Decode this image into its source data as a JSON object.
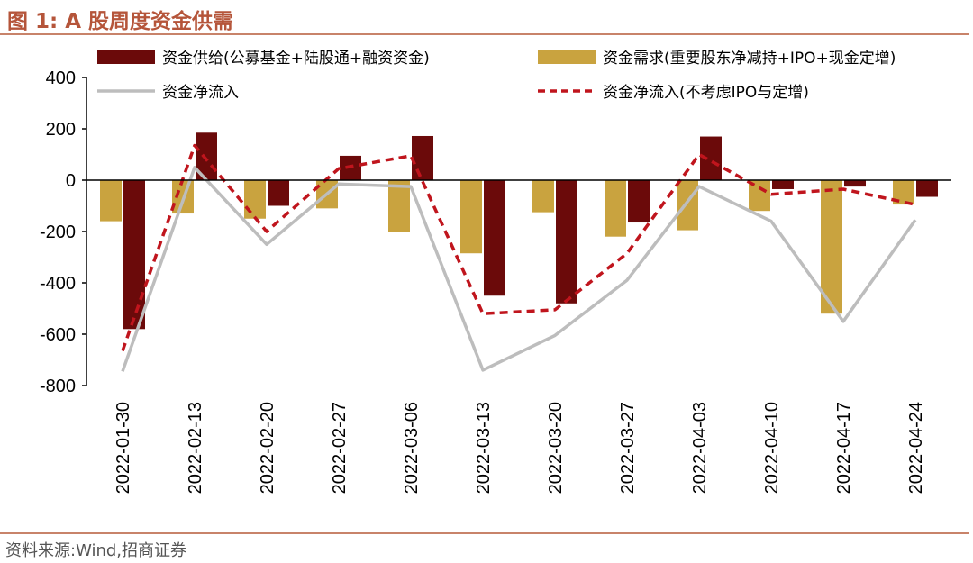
{
  "figure": {
    "title": "图 1:  A 股周度资金供需",
    "source": "资料来源:Wind,招商证券"
  },
  "colors": {
    "supply": "#6b0a0a",
    "demand": "#c9a33f",
    "net": "#bdbdbd",
    "net_ex": "#c0151d",
    "accent": "#b5553a"
  },
  "chart_data": {
    "type": "bar",
    "categories": [
      "2022-01-30",
      "2022-02-13",
      "2022-02-20",
      "2022-02-27",
      "2022-03-06",
      "2022-03-13",
      "2022-03-20",
      "2022-03-27",
      "2022-04-03",
      "2022-04-10",
      "2022-04-17",
      "2022-04-24"
    ],
    "ylim": [
      -800,
      400
    ],
    "yticks": [
      400,
      200,
      0,
      -200,
      -400,
      -600,
      -800
    ],
    "grid": false,
    "legend_position": "top",
    "series": [
      {
        "name": "资金需求(重要股东净减持+IPO+现金定增)",
        "type": "bar",
        "values": [
          -160,
          -130,
          -150,
          -110,
          -200,
          -285,
          -125,
          -220,
          -195,
          -120,
          -520,
          -95
        ]
      },
      {
        "name": "资金供给(公募基金+陆股通+融资资金)",
        "type": "bar",
        "values": [
          -580,
          185,
          -100,
          95,
          172,
          -450,
          -480,
          -165,
          170,
          -35,
          -25,
          -65
        ]
      },
      {
        "name": "资金净流入",
        "type": "line",
        "values": [
          -745,
          50,
          -250,
          -15,
          -25,
          -740,
          -605,
          -390,
          -25,
          -160,
          -550,
          -155
        ]
      },
      {
        "name": "资金净流入(不考虑IPO与定增)",
        "type": "line",
        "style": "dashed",
        "values": [
          -665,
          135,
          -200,
          45,
          95,
          -520,
          -505,
          -285,
          100,
          -55,
          -35,
          -95
        ]
      }
    ]
  }
}
